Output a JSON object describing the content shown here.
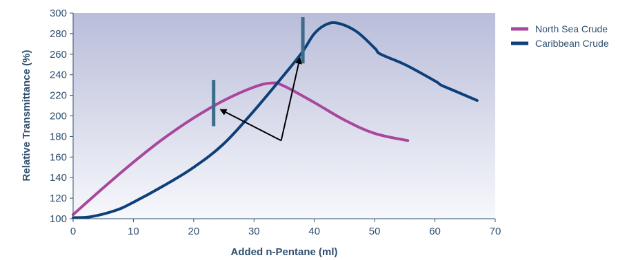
{
  "chart_data": {
    "type": "line",
    "title": "",
    "xlabel": "Added n-Pentane (ml)",
    "ylabel": "Relative Transmittance (%)",
    "xlim": [
      0,
      70
    ],
    "ylim": [
      100,
      300
    ],
    "xticks": [
      0,
      10,
      20,
      30,
      40,
      50,
      60,
      70
    ],
    "yticks": [
      100,
      120,
      140,
      160,
      180,
      200,
      220,
      240,
      260,
      280,
      300
    ],
    "legend_position": "right",
    "grid": false,
    "series": [
      {
        "name": "North Sea Crude",
        "color": "#a8479b",
        "x": [
          0,
          5,
          10,
          15,
          20,
          25,
          30,
          33,
          35,
          40,
          45,
          50,
          55.5
        ],
        "y": [
          104,
          130,
          155,
          178,
          198,
          215,
          228,
          232,
          229,
          213,
          196,
          183,
          176
        ]
      },
      {
        "name": "Caribbean Crude",
        "color": "#0d3f78",
        "x": [
          0,
          3,
          7,
          10,
          15,
          20,
          25,
          30,
          35,
          38,
          40,
          42,
          44,
          47,
          50,
          51,
          55,
          60,
          61,
          63,
          67
        ],
        "y": [
          101,
          102,
          108,
          116,
          132,
          150,
          173,
          205,
          240,
          262,
          280,
          289,
          290,
          282,
          266,
          260,
          250,
          234,
          230,
          225,
          215
        ]
      }
    ],
    "markers": [
      {
        "series": "North Sea Crude",
        "x": 23.3,
        "y_from": 190,
        "y_to": 235
      },
      {
        "series": "Caribbean Crude",
        "x": 38.1,
        "y_from": 251,
        "y_to": 296
      }
    ],
    "arrows": {
      "origin": {
        "x": 34.5,
        "y": 176
      },
      "targets": [
        {
          "x": 24.5,
          "y": 206
        },
        {
          "x": 37.6,
          "y": 256
        }
      ]
    }
  },
  "colors": {
    "plot_top": "#b9bdd9",
    "plot_bottom": "#f7f8fc",
    "axis": "#2f4f6f",
    "marker": "#3d6b8c",
    "arrow": "#000000"
  }
}
